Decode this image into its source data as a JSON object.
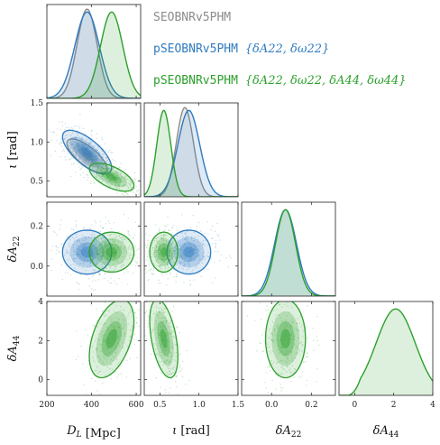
{
  "chart_data": {
    "type": "corner",
    "parameters": [
      {
        "key": "DL",
        "label": "D_L [Mpc]",
        "range": [
          200,
          620
        ],
        "ticks": [
          200,
          400,
          600
        ],
        "tick_labels": [
          "200",
          "400",
          "600"
        ]
      },
      {
        "key": "iota",
        "label": "ι [rad]",
        "range": [
          0.3,
          1.5
        ],
        "ticks": [
          0.5,
          1.0,
          1.5
        ],
        "tick_labels": [
          "0.5",
          "1.0",
          "1.5"
        ]
      },
      {
        "key": "dA22",
        "label": "δA22",
        "range": [
          -0.15,
          0.32
        ],
        "ticks": [
          0.0,
          0.2
        ],
        "tick_labels": [
          "0.0",
          "0.2"
        ]
      },
      {
        "key": "dA44",
        "label": "δA44",
        "range": [
          -0.8,
          4.0
        ],
        "ticks": [
          0,
          2,
          4
        ],
        "tick_labels": [
          "0",
          "2",
          "4"
        ]
      }
    ],
    "legend": [
      {
        "text": "SEOBNRv5PHM",
        "math": "",
        "color": "#8c8c8c"
      },
      {
        "text": "pSEOBNRv5PHM ",
        "math": "{δA22, δω22}",
        "color": "#2f7bbf"
      },
      {
        "text": "pSEOBNRv5PHM ",
        "math": "{δA22, δω22, δA44, δω44}",
        "color": "#2ca02c"
      }
    ],
    "series": [
      {
        "name": "SEOBNRv5PHM",
        "color": "#8c8c8c",
        "means": {
          "DL": 380,
          "iota": 0.82
        },
        "sd": {
          "DL": 45,
          "iota": 0.11
        },
        "corr": {
          "DL_iota": -0.75
        }
      },
      {
        "name": "pSEOBNRv5PHM {δA22, δω22}",
        "color": "#2f7bbf",
        "means": {
          "DL": 380,
          "iota": 0.87,
          "dA22": 0.07
        },
        "sd": {
          "DL": 55,
          "iota": 0.14,
          "dA22": 0.055
        },
        "corr": {
          "DL_iota": -0.7,
          "DL_dA22": 0.0,
          "iota_dA22": 0.0
        }
      },
      {
        "name": "pSEOBNRv5PHM {δA22, δω22, δA44, δω44}",
        "color": "#2ca02c",
        "means": {
          "DL": 490,
          "iota": 0.55,
          "dA22": 0.07,
          "dA44": 2.1
        },
        "sd": {
          "DL": 50,
          "iota": 0.09,
          "dA22": 0.05,
          "dA44": 1.0
        },
        "corr": {
          "DL_iota": -0.6,
          "DL_dA22": 0.0,
          "iota_dA22": 0.0,
          "DL_dA44": 0.45,
          "iota_dA44": -0.45,
          "dA22_dA44": 0.0
        }
      }
    ],
    "dA44_prior_range": [
      0.0,
      4.0
    ]
  }
}
